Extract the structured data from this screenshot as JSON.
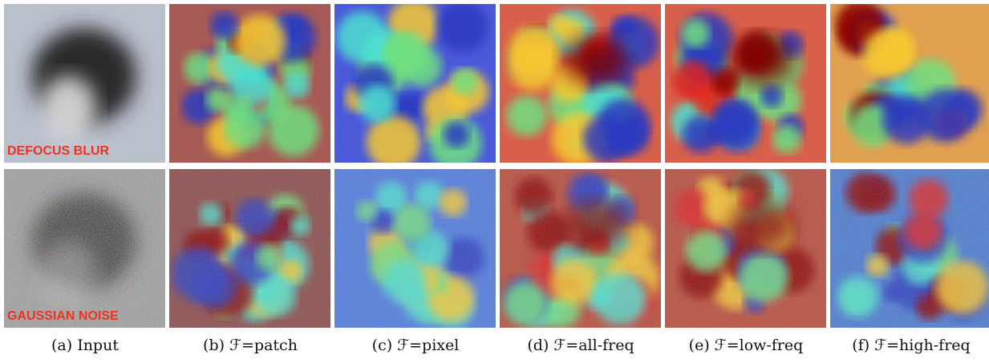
{
  "panels": [
    {
      "caption": "(a) Input"
    },
    {
      "caption": "(b) ℱ=patch"
    },
    {
      "caption": "(c) ℱ=pixel"
    },
    {
      "caption": "(d) ℱ=all-freq"
    },
    {
      "caption": "(e) ℱ=low-freq"
    },
    {
      "caption": "(f) ℱ=high-freq"
    }
  ],
  "overlays": [
    "DEFOCUS BLUR",
    "GAUSSIAN NOISE"
  ]
}
